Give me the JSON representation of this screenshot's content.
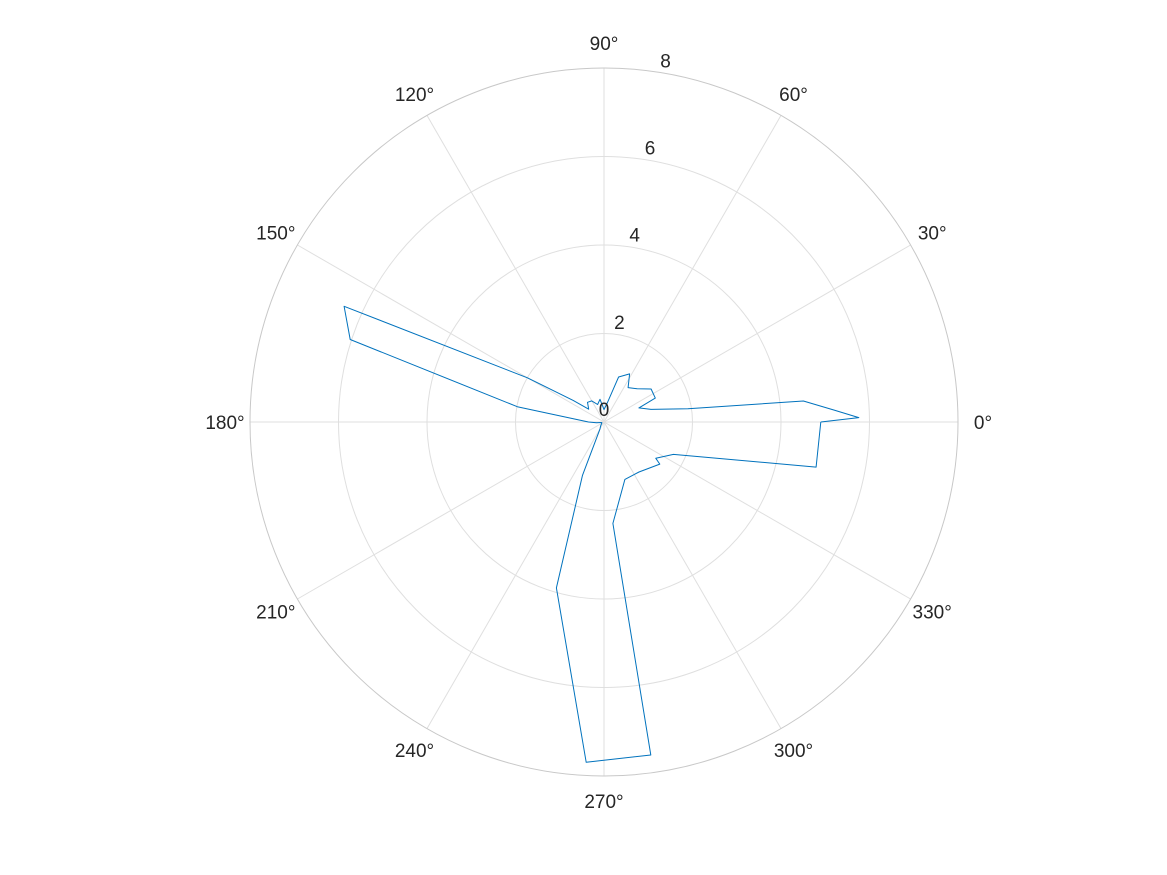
{
  "chart_data": {
    "type": "polar-line",
    "title": "",
    "theta_unit": "degrees",
    "theta_ticks": [
      0,
      30,
      60,
      90,
      120,
      150,
      180,
      210,
      240,
      270,
      300,
      330
    ],
    "theta_tick_labels": [
      "0°",
      "30°",
      "60°",
      "90°",
      "120°",
      "150°",
      "180°",
      "210°",
      "240°",
      "270°",
      "300°",
      "330°"
    ],
    "r_ticks": [
      0,
      2,
      4,
      6,
      8
    ],
    "r_tick_labels": [
      "0",
      "2",
      "4",
      "6",
      "8"
    ],
    "rlim": [
      0,
      8
    ],
    "grid": true,
    "series_color": "#0072BD",
    "series": [
      {
        "points": [
          [
            0,
            4.9
          ],
          [
            1,
            5.76
          ],
          [
            3,
            5.2
          ],
          [
            6,
            4.53
          ],
          [
            9,
            1.92
          ],
          [
            15,
            1.1
          ],
          [
            22,
            0.85
          ],
          [
            25,
            1.28
          ],
          [
            35,
            1.3
          ],
          [
            45,
            1.06
          ],
          [
            55,
            0.95
          ],
          [
            62,
            1.23
          ],
          [
            72,
            1.07
          ],
          [
            80,
            0.45
          ],
          [
            90,
            0.28
          ],
          [
            100,
            0.52
          ],
          [
            110,
            0.42
          ],
          [
            120,
            0.55
          ],
          [
            130,
            0.58
          ],
          [
            140,
            0.45
          ],
          [
            145,
            0.85
          ],
          [
            150,
            2.0
          ],
          [
            156,
            6.43
          ],
          [
            162,
            6.03
          ],
          [
            170,
            1.99
          ],
          [
            180,
            0.35
          ],
          [
            185,
            0.17
          ],
          [
            190,
            0.06
          ],
          [
            200,
            0.05
          ],
          [
            230,
            0.12
          ],
          [
            240,
            0.18
          ],
          [
            248,
            1.3
          ],
          [
            254,
            3.9
          ],
          [
            267,
            7.7
          ],
          [
            278,
            7.6
          ],
          [
            275,
            2.3
          ],
          [
            290,
            1.38
          ],
          [
            305,
            1.38
          ],
          [
            323,
            1.58
          ],
          [
            325,
            1.43
          ],
          [
            335,
            1.73
          ],
          [
            348,
            4.9
          ],
          [
            360,
            4.9
          ]
        ]
      }
    ]
  }
}
